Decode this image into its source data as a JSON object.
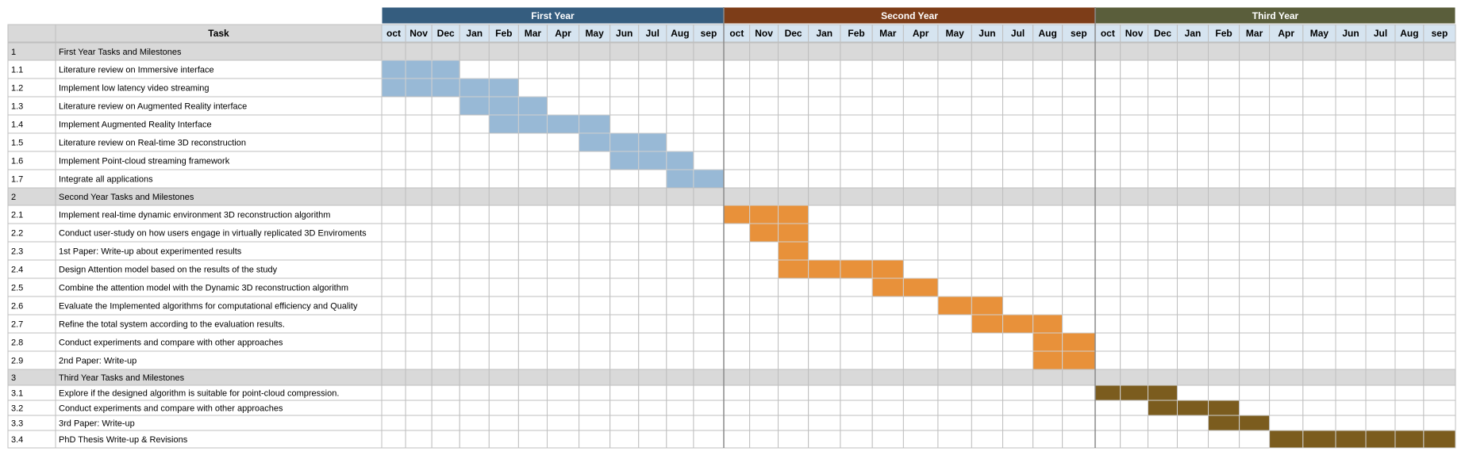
{
  "chart_data": {
    "type": "gantt",
    "task_header": "Task",
    "years": [
      {
        "label": "First Year",
        "color": "#355d7f"
      },
      {
        "label": "Second Year",
        "color": "#7d3d18"
      },
      {
        "label": "Third Year",
        "color": "#5a5e3b"
      }
    ],
    "months": [
      "oct",
      "Nov",
      "Dec",
      "Jan",
      "Feb",
      "Mar",
      "Apr",
      "May",
      "Jun",
      "Jul",
      "Aug",
      "sep",
      "oct",
      "Nov",
      "Dec",
      "Jan",
      "Feb",
      "Mar",
      "Apr",
      "May",
      "Jun",
      "Jul",
      "Aug",
      "sep",
      "oct",
      "Nov",
      "Dec",
      "Jan",
      "Feb",
      "Mar",
      "Apr",
      "May",
      "Jun",
      "Jul",
      "Aug",
      "sep"
    ],
    "colors": {
      "header_bg": "#d6e4f0",
      "section_bg": "#d9d9d9",
      "grid": "#bfbfbf",
      "year1_bar": "#98b9d6",
      "year2_bar": "#e8913a",
      "year3_bar": "#7b5c1e"
    },
    "rows": [
      {
        "id": "1",
        "task": "First Year Tasks and Milestones",
        "section": true
      },
      {
        "id": "1.1",
        "task": "Literature review on Immersive interface",
        "start": 0,
        "end": 2,
        "bar": "year1_bar"
      },
      {
        "id": "1.2",
        "task": "Implement low latency video streaming",
        "start": 0,
        "end": 4,
        "bar": "year1_bar"
      },
      {
        "id": "1.3",
        "task": "Literature review on Augmented Reality interface",
        "start": 3,
        "end": 5,
        "bar": "year1_bar"
      },
      {
        "id": "1.4",
        "task": "Implement Augmented Reality Interface",
        "start": 4,
        "end": 7,
        "bar": "year1_bar"
      },
      {
        "id": "1.5",
        "task": "Literature review on Real-time 3D reconstruction",
        "start": 7,
        "end": 9,
        "bar": "year1_bar"
      },
      {
        "id": "1.6",
        "task": "Implement Point-cloud streaming framework",
        "start": 8,
        "end": 10,
        "bar": "year1_bar"
      },
      {
        "id": "1.7",
        "task": "Integrate  all applications",
        "start": 10,
        "end": 11,
        "bar": "year1_bar"
      },
      {
        "id": "2",
        "task": "Second Year Tasks and Milestones",
        "section": true
      },
      {
        "id": "2.1",
        "task": "Implement real-time dynamic environment 3D reconstruction algorithm",
        "start": 12,
        "end": 14,
        "bar": "year2_bar"
      },
      {
        "id": "2.2",
        "task": "Conduct user-study on how users engage in virtually replicated 3D Enviroments",
        "start": 13,
        "end": 14,
        "bar": "year2_bar"
      },
      {
        "id": "2.3",
        "task": "1st Paper: Write-up about experimented results",
        "start": 14,
        "end": 14,
        "bar": "year2_bar"
      },
      {
        "id": "2.4",
        "task": "Design Attention model based on the results of the study",
        "start": 14,
        "end": 17,
        "bar": "year2_bar"
      },
      {
        "id": "2.5",
        "task": "Combine the attention model with the Dynamic 3D reconstruction algorithm",
        "start": 17,
        "end": 18,
        "bar": "year2_bar"
      },
      {
        "id": "2.6",
        "task": "Evaluate the Implemented algorithms for computational efficiency and Quality",
        "start": 19,
        "end": 20,
        "bar": "year2_bar"
      },
      {
        "id": "2.7",
        "task": "Refine the total system according to the evaluation results.",
        "start": 20,
        "end": 22,
        "bar": "year2_bar"
      },
      {
        "id": "2.8",
        "task": "Conduct experiments and compare with other approaches",
        "start": 22,
        "end": 23,
        "bar": "year2_bar"
      },
      {
        "id": "2.9",
        "task": "2nd Paper: Write-up",
        "start": 22,
        "end": 23,
        "bar": "year2_bar"
      },
      {
        "id": "3",
        "task": "Third Year Tasks and Milestones",
        "section": true
      },
      {
        "id": "3.1",
        "task": "Explore if the designed algorithm is suitable for point-cloud compression.",
        "start": 24,
        "end": 26,
        "bar": "year3_bar"
      },
      {
        "id": "3.2",
        "task": "Conduct experiments and compare with other approaches",
        "start": 26,
        "end": 28,
        "bar": "year3_bar"
      },
      {
        "id": "3.3",
        "task": "3rd Paper: Write-up",
        "start": 28,
        "end": 29,
        "bar": "year3_bar"
      },
      {
        "id": "3.4",
        "task": " PhD Thesis Write-up & Revisions",
        "start": 30,
        "end": 35,
        "bar": "year3_bar"
      }
    ]
  }
}
